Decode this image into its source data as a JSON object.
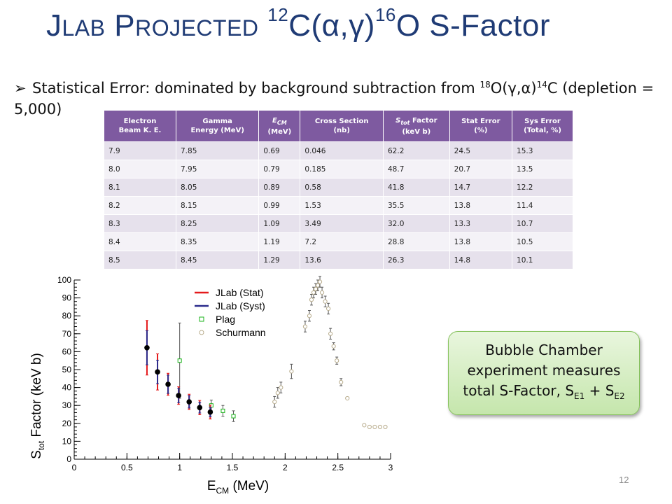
{
  "title": {
    "prefix_j": "J",
    "prefix_lab": "LAB",
    "projected_p": "P",
    "projected_rest": "ROJECTED",
    "mass_c": "12",
    "nucleus_c": "C",
    "reaction": "(α,γ)",
    "mass_o": "16",
    "rest": "O S-Factor"
  },
  "bullet": {
    "text_start": "Statistical Error: dominated by background subtraction from ",
    "mass_o": "18",
    "nucleus_o": "O",
    "reaction": "(γ,α)",
    "mass_c": "14",
    "text_end": "C (depletion = 5,000)"
  },
  "table": {
    "headers": [
      [
        "Electron",
        "Beam K. E."
      ],
      [
        "Gamma",
        "Energy (MeV)"
      ],
      [
        "E_CM",
        "(MeV)"
      ],
      [
        "Cross Section",
        "(nb)"
      ],
      [
        "S_tot Factor",
        "(keV b)"
      ],
      [
        "Stat Error",
        "(%)"
      ],
      [
        "Sys Error",
        "(Total, %)"
      ]
    ],
    "rows": [
      [
        "7.9",
        "7.85",
        "0.69",
        "0.046",
        "62.2",
        "24.5",
        "15.3"
      ],
      [
        "8.0",
        "7.95",
        "0.79",
        "0.185",
        "48.7",
        "20.7",
        "13.5"
      ],
      [
        "8.1",
        "8.05",
        "0.89",
        "0.58",
        "41.8",
        "14.7",
        "12.2"
      ],
      [
        "8.2",
        "8.15",
        "0.99",
        "1.53",
        "35.5",
        "13.8",
        "11.4"
      ],
      [
        "8.3",
        "8.25",
        "1.09",
        "3.49",
        "32.0",
        "13.3",
        "10.7"
      ],
      [
        "8.4",
        "8.35",
        "1.19",
        "7.2",
        "28.8",
        "13.8",
        "10.5"
      ],
      [
        "8.5",
        "8.45",
        "1.29",
        "13.6",
        "26.3",
        "14.8",
        "10.1"
      ]
    ]
  },
  "chart_data": {
    "type": "scatter",
    "xlabel": "E_CM (MeV)",
    "ylabel": "S_tot Factor (keV b)",
    "xlim": [
      0,
      3
    ],
    "ylim": [
      0,
      100
    ],
    "xticks": [
      "0",
      "0.5",
      "1",
      "1.5",
      "2",
      "2.5",
      "3"
    ],
    "yticks": [
      "0",
      "10",
      "20",
      "30",
      "40",
      "50",
      "60",
      "70",
      "80",
      "90",
      "100"
    ],
    "grid": false,
    "legend": "upper-left",
    "series": [
      {
        "name": "JLab (Stat)",
        "color": "#e41a1c",
        "x": [
          0.69,
          0.79,
          0.89,
          0.99,
          1.09,
          1.19,
          1.29
        ],
        "y": [
          62.2,
          48.7,
          41.8,
          35.5,
          32.0,
          28.8,
          26.3
        ],
        "err_pct": [
          24.5,
          20.7,
          14.7,
          13.8,
          13.3,
          13.8,
          14.8
        ]
      },
      {
        "name": "JLab (Syst)",
        "color": "#2b2c8c",
        "x": [
          0.69,
          0.79,
          0.89,
          0.99,
          1.09,
          1.19,
          1.29
        ],
        "y": [
          62.2,
          48.7,
          41.8,
          35.5,
          32.0,
          28.8,
          26.3
        ],
        "err_pct": [
          15.3,
          13.5,
          12.2,
          11.4,
          10.7,
          10.5,
          10.1
        ]
      },
      {
        "name": "Plag",
        "color": "#19b319",
        "x": [
          1.0,
          1.3,
          1.41,
          1.51
        ],
        "y": [
          55,
          30,
          27,
          24
        ],
        "err": [
          21,
          3,
          3,
          3
        ]
      },
      {
        "name": "Schurmann",
        "color": "#b8ac8c",
        "x": [
          1.9,
          1.93,
          1.96,
          2.06,
          2.19,
          2.23,
          2.25,
          2.27,
          2.29,
          2.31,
          2.33,
          2.35,
          2.38,
          2.41,
          2.43,
          2.46,
          2.49,
          2.53,
          2.59,
          2.75,
          2.8,
          2.85,
          2.9,
          2.95
        ],
        "y": [
          32,
          37,
          40,
          49,
          74,
          80,
          89,
          93,
          95,
          97,
          99,
          93,
          88,
          84,
          70,
          63,
          55,
          43,
          34,
          19,
          18,
          18,
          18,
          18
        ],
        "err": [
          3,
          3,
          3,
          4,
          3,
          3,
          3,
          3,
          3,
          3,
          3,
          3,
          3,
          3,
          3,
          2,
          2,
          2,
          0,
          0,
          0,
          0,
          0,
          0
        ]
      }
    ]
  },
  "callout": {
    "line1": "Bubble Chamber",
    "line2": "experiment measures",
    "line3_start": "total S-Factor, S",
    "sub1": "E1",
    "plus": " + S",
    "sub2": "E2"
  },
  "page_number": "12"
}
